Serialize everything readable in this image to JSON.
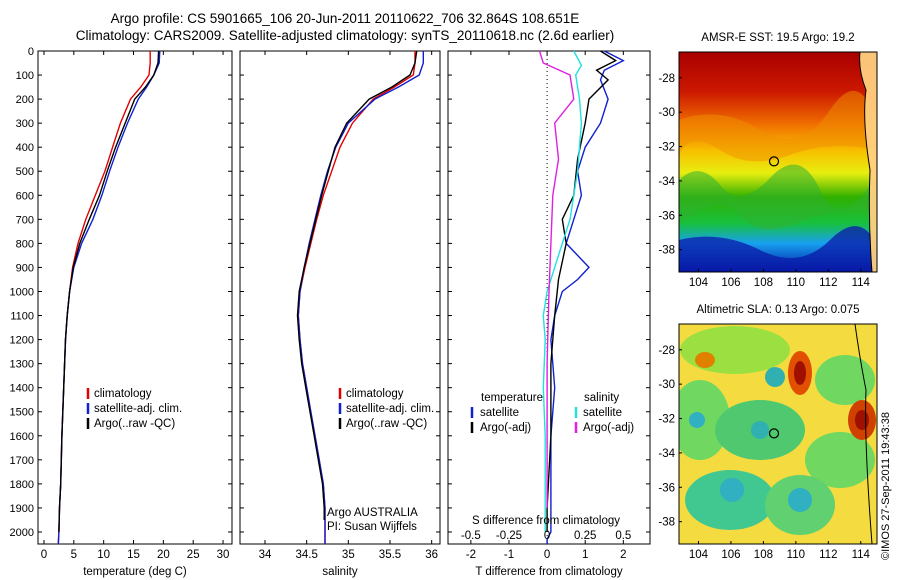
{
  "header": {
    "line1": "Argo profile: CS 5901665_106 20-Jun-2011 20110622_706 32.864S 108.651E",
    "line2": "Climatology: CARS2009. Satellite-adjusted climatology: synTS_20110618.nc (2.6d earlier)"
  },
  "credit": "©IMOS 27-Sep-2011 19:43:38",
  "colors": {
    "climatology": "#e00000",
    "satellite": "#1020d0",
    "argo": "#000000",
    "argo_salt": "#e020e0",
    "satellite_salt": "#20e0e0"
  },
  "depth_axis": {
    "ticks": [
      0,
      100,
      200,
      300,
      400,
      500,
      600,
      700,
      800,
      900,
      1000,
      1100,
      1200,
      1300,
      1400,
      1500,
      1600,
      1700,
      1800,
      1900,
      2000
    ],
    "range": [
      0,
      2050
    ]
  },
  "chart_data": [
    {
      "type": "line",
      "xlabel": "temperature (deg C)",
      "xlim": [
        -1,
        31.5
      ],
      "xticks": [
        0,
        5,
        10,
        15,
        20,
        25,
        30
      ],
      "legend": [
        "climatology",
        "satellite-adj. clim.",
        "Argo(..raw -QC)"
      ],
      "series": [
        {
          "name": "climatology",
          "color": "#e00000",
          "x": [
            17.8,
            17.8,
            17.6,
            16.2,
            14.5,
            12.8,
            11.5,
            10.2,
            8.6,
            7.0,
            5.7,
            4.8,
            4.3,
            3.9,
            3.6,
            3.3,
            3.0,
            2.8,
            2.6,
            2.5,
            2.4
          ],
          "depth": [
            0,
            50,
            100,
            150,
            200,
            300,
            400,
            500,
            600,
            700,
            800,
            900,
            1000,
            1100,
            1200,
            1400,
            1600,
            1800,
            1900,
            2000,
            2050
          ]
        },
        {
          "name": "satellite-adj. clim.",
          "color": "#1020d0",
          "x": [
            19.4,
            19.3,
            18.4,
            17.2,
            15.8,
            14.0,
            12.4,
            11.0,
            9.7,
            8.2,
            6.3,
            5.0,
            4.3,
            3.9,
            3.6,
            3.3,
            3.0,
            2.8,
            2.6,
            2.5,
            2.4
          ],
          "depth": [
            0,
            50,
            100,
            150,
            200,
            300,
            400,
            500,
            600,
            700,
            800,
            900,
            1000,
            1100,
            1200,
            1400,
            1600,
            1800,
            1900,
            2000,
            2050
          ]
        },
        {
          "name": "Argo(..raw -QC)",
          "color": "#000000",
          "x": [
            19.2,
            19.1,
            18.4,
            17.0,
            15.2,
            13.6,
            12.0,
            10.6,
            9.3,
            7.6,
            6.0,
            4.9,
            4.3,
            3.9,
            3.6,
            3.3,
            3.0,
            2.8,
            2.6,
            2.5
          ],
          "depth": [
            0,
            50,
            100,
            150,
            200,
            300,
            400,
            500,
            600,
            700,
            800,
            900,
            1000,
            1100,
            1200,
            1400,
            1600,
            1800,
            1900,
            2000
          ]
        }
      ]
    },
    {
      "type": "line",
      "xlabel": "salinity",
      "xlim": [
        33.7,
        36.1
      ],
      "xticks": [
        34,
        34.5,
        35,
        35.5,
        36
      ],
      "xticklabels": [
        "34",
        "34.5",
        "35",
        "35.5",
        "36"
      ],
      "legend": [
        "climatology",
        "satellite-adj. clim.",
        "Argo(..raw -QC)"
      ],
      "annotation": [
        "Argo AUSTRALIA",
        "PI: Susan Wijffels"
      ],
      "series": [
        {
          "name": "climatology",
          "color": "#e00000",
          "x": [
            35.8,
            35.8,
            35.78,
            35.55,
            35.3,
            35.05,
            34.9,
            34.8,
            34.7,
            34.62,
            34.55,
            34.48,
            34.42,
            34.4,
            34.42,
            34.45,
            34.5,
            34.55,
            34.6,
            34.65,
            34.7,
            34.72,
            34.72,
            34.72,
            34.72
          ],
          "depth": [
            0,
            50,
            100,
            150,
            200,
            300,
            400,
            500,
            600,
            700,
            800,
            900,
            1000,
            1100,
            1200,
            1300,
            1400,
            1500,
            1600,
            1700,
            1800,
            1900,
            1950,
            2000,
            2050
          ]
        },
        {
          "name": "satellite-adj. clim.",
          "color": "#1020d0",
          "x": [
            35.9,
            35.9,
            35.85,
            35.6,
            35.32,
            35.0,
            34.85,
            34.75,
            34.67,
            34.6,
            34.53,
            34.47,
            34.42,
            34.4,
            34.42,
            34.45,
            34.5,
            34.55,
            34.6,
            34.65,
            34.7,
            34.72,
            34.72,
            34.72,
            34.72
          ],
          "depth": [
            0,
            50,
            100,
            150,
            200,
            300,
            400,
            500,
            600,
            700,
            800,
            900,
            1000,
            1100,
            1200,
            1300,
            1400,
            1500,
            1600,
            1700,
            1800,
            1900,
            1950,
            2000,
            2050
          ]
        },
        {
          "name": "Argo(..raw -QC)",
          "color": "#000000",
          "x": [
            35.82,
            35.8,
            35.74,
            35.52,
            35.25,
            34.98,
            34.84,
            34.76,
            34.68,
            34.61,
            34.54,
            34.47,
            34.41,
            34.39,
            34.41,
            34.44,
            34.49,
            34.54,
            34.59,
            34.64,
            34.69,
            34.71,
            34.71
          ],
          "depth": [
            0,
            50,
            100,
            150,
            200,
            300,
            400,
            500,
            600,
            700,
            800,
            900,
            1000,
            1100,
            1200,
            1300,
            1400,
            1500,
            1600,
            1700,
            1800,
            1900,
            1950
          ]
        }
      ]
    },
    {
      "type": "line",
      "xlabel": "T difference from climatology",
      "xlim": [
        -2.6,
        2.7
      ],
      "xticks": [
        -2,
        -1,
        0,
        1,
        2
      ],
      "top_label": "S difference from climatology",
      "top_xticks": [
        -0.5,
        -0.25,
        0,
        0.25,
        0.5
      ],
      "top_xticklabels": [
        "-0.5",
        "-0.25",
        "0",
        "0.25",
        "0.5"
      ],
      "legend_temperature": {
        "title": "temperature",
        "items": [
          "satellite",
          "Argo(-adj)"
        ]
      },
      "legend_salinity": {
        "title": "salinity",
        "items": [
          "satellite",
          "Argo(-adj)"
        ]
      },
      "series": [
        {
          "name": "temperature satellite",
          "color": "#1020d0",
          "x": [
            1.5,
            2.0,
            1.5,
            1.4,
            1.6,
            1.4,
            1.0,
            0.8,
            0.9,
            0.7,
            0.5,
            1.1,
            0.8,
            0.4,
            0.2,
            0.1,
            0.2,
            0.1,
            0.1,
            0.1,
            0.0,
            0.0
          ],
          "depth": [
            0,
            40,
            80,
            120,
            200,
            300,
            400,
            500,
            600,
            700,
            800,
            900,
            950,
            1000,
            1100,
            1200,
            1400,
            1600,
            1800,
            2000,
            2030,
            2050
          ]
        },
        {
          "name": "temperature Argo(-adj)",
          "color": "#000000",
          "x": [
            1.4,
            1.8,
            1.3,
            1.6,
            1.1,
            1.0,
            0.8,
            0.7,
            0.4,
            0.5,
            0.3,
            0.2,
            0.1,
            0.1,
            0.0,
            0.0
          ],
          "depth": [
            0,
            40,
            80,
            120,
            200,
            300,
            450,
            600,
            700,
            800,
            950,
            1100,
            1300,
            1600,
            1900,
            2000
          ]
        },
        {
          "name": "salinity satellite",
          "color": "#20e0e0",
          "x": [
            0.7,
            0.9,
            0.75,
            0.85,
            0.9,
            0.8,
            0.6,
            0.3,
            0.0,
            -0.1,
            -0.05,
            -0.1,
            -0.05,
            -0.05,
            -0.05
          ],
          "depth": [
            0,
            60,
            100,
            200,
            300,
            500,
            700,
            850,
            1000,
            1100,
            1200,
            1400,
            1600,
            1800,
            2000
          ]
        },
        {
          "name": "salinity Argo(-adj)",
          "color": "#e020e0",
          "x": [
            -0.2,
            -0.1,
            0.6,
            0.7,
            0.2,
            0.3,
            0.15,
            0.1,
            0.05,
            0.0,
            0.0,
            0.0
          ],
          "depth": [
            0,
            50,
            100,
            200,
            300,
            450,
            600,
            800,
            1000,
            1300,
            1600,
            1900
          ]
        }
      ]
    },
    {
      "type": "heatmap",
      "title": "AMSR-E SST: 19.5  Argo: 19.2",
      "xticks": [
        104,
        106,
        108,
        110,
        112,
        114
      ],
      "yticks": [
        -28,
        -30,
        -32,
        -34,
        -36,
        -38
      ],
      "xlim": [
        102.8,
        115
      ],
      "ylim": [
        -39.3,
        -26.5
      ],
      "marker": {
        "lon": 108.651,
        "lat": -32.864
      }
    },
    {
      "type": "heatmap",
      "title": "Altimetric SLA: 0.13  Argo: 0.075",
      "xticks": [
        104,
        106,
        108,
        110,
        112,
        114
      ],
      "yticks": [
        -28,
        -30,
        -32,
        -34,
        -36,
        -38
      ],
      "xlim": [
        102.8,
        115
      ],
      "ylim": [
        -39.3,
        -26.5
      ],
      "marker": {
        "lon": 108.651,
        "lat": -32.864
      }
    }
  ]
}
